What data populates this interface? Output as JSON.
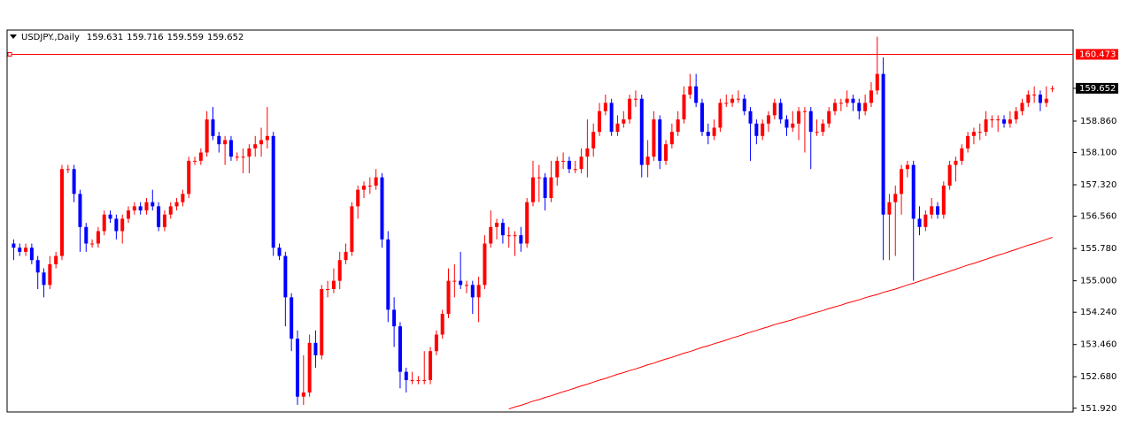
{
  "chart_data": {
    "type": "candlestick",
    "title": "USDJPY.,Daily",
    "up_color": "#ff0000",
    "down_color": "#0000ff",
    "ma_color": "#ff0000",
    "ylim": [
      151.83,
      161.06
    ],
    "yticks": [
      {
        "value": 151.92,
        "label": "151.920"
      },
      {
        "value": 152.68,
        "label": "152.680"
      },
      {
        "value": 153.46,
        "label": "153.460"
      },
      {
        "value": 154.24,
        "label": "154.240"
      },
      {
        "value": 155,
        "label": "155.000"
      },
      {
        "value": 155.78,
        "label": "155.780"
      },
      {
        "value": 156.56,
        "label": "156.560"
      },
      {
        "value": 157.32,
        "label": "157.320"
      },
      {
        "value": 158.1,
        "label": "158.100"
      },
      {
        "value": 158.86,
        "label": "158.860"
      }
    ],
    "level": 160.473,
    "candles": [
      [
        155.9,
        156.0,
        155.5,
        155.8
      ],
      [
        155.8,
        155.9,
        155.6,
        155.7
      ],
      [
        155.7,
        155.9,
        155.6,
        155.8
      ],
      [
        155.8,
        155.9,
        155.4,
        155.5
      ],
      [
        155.5,
        155.6,
        154.8,
        155.2
      ],
      [
        155.2,
        155.3,
        154.6,
        154.9
      ],
      [
        154.9,
        155.6,
        154.8,
        155.4
      ],
      [
        155.4,
        155.7,
        155.3,
        155.6
      ],
      [
        155.6,
        157.8,
        155.5,
        157.7
      ],
      [
        157.7,
        157.8,
        157.6,
        157.7
      ],
      [
        157.7,
        157.8,
        156.9,
        157.1
      ],
      [
        157.1,
        157.2,
        155.7,
        156.3
      ],
      [
        156.3,
        156.4,
        155.7,
        155.9
      ],
      [
        155.9,
        156.0,
        155.8,
        155.9
      ],
      [
        155.9,
        156.3,
        155.8,
        156.2
      ],
      [
        156.2,
        156.7,
        156.1,
        156.6
      ],
      [
        156.6,
        156.7,
        156.4,
        156.5
      ],
      [
        156.5,
        156.6,
        156.0,
        156.2
      ],
      [
        156.2,
        156.6,
        155.9,
        156.5
      ],
      [
        156.5,
        156.8,
        156.4,
        156.7
      ],
      [
        156.7,
        156.9,
        156.6,
        156.8
      ],
      [
        156.8,
        156.9,
        156.6,
        156.7
      ],
      [
        156.7,
        157.0,
        156.6,
        156.9
      ],
      [
        156.9,
        157.2,
        156.7,
        156.8
      ],
      [
        156.8,
        156.9,
        156.2,
        156.3
      ],
      [
        156.3,
        156.7,
        156.2,
        156.6
      ],
      [
        156.6,
        156.9,
        156.5,
        156.8
      ],
      [
        156.8,
        157.0,
        156.7,
        156.9
      ],
      [
        156.9,
        157.2,
        156.8,
        157.1
      ],
      [
        157.1,
        158.0,
        157.0,
        157.9
      ],
      [
        157.9,
        158.0,
        157.8,
        157.9
      ],
      [
        157.9,
        158.2,
        157.8,
        158.1
      ],
      [
        158.1,
        159.1,
        158.0,
        158.9
      ],
      [
        158.9,
        159.2,
        158.4,
        158.5
      ],
      [
        158.5,
        158.6,
        158.1,
        158.3
      ],
      [
        158.3,
        158.5,
        157.8,
        158.4
      ],
      [
        158.4,
        158.5,
        157.9,
        158.0
      ],
      [
        158.0,
        158.1,
        157.9,
        158.0
      ],
      [
        158.0,
        158.2,
        157.6,
        158.0
      ],
      [
        158.0,
        158.3,
        157.6,
        158.2
      ],
      [
        158.2,
        158.5,
        158.0,
        158.3
      ],
      [
        158.3,
        158.7,
        158.0,
        158.4
      ],
      [
        158.4,
        159.2,
        158.2,
        158.5
      ],
      [
        158.5,
        158.6,
        155.6,
        155.8
      ],
      [
        155.8,
        155.9,
        155.5,
        155.6
      ],
      [
        155.6,
        155.7,
        153.9,
        154.6
      ],
      [
        154.6,
        154.7,
        153.3,
        153.6
      ],
      [
        153.6,
        153.8,
        152.0,
        152.2
      ],
      [
        152.2,
        153.2,
        152.0,
        152.3
      ],
      [
        152.3,
        153.7,
        152.2,
        153.5
      ],
      [
        153.5,
        153.8,
        152.9,
        153.2
      ],
      [
        153.2,
        154.9,
        153.1,
        154.8
      ],
      [
        154.8,
        155.0,
        154.6,
        154.8
      ],
      [
        154.8,
        155.3,
        154.7,
        155.0
      ],
      [
        155.0,
        155.7,
        154.8,
        155.5
      ],
      [
        155.5,
        155.9,
        155.4,
        155.7
      ],
      [
        155.7,
        156.9,
        155.6,
        156.8
      ],
      [
        156.8,
        157.3,
        156.5,
        157.2
      ],
      [
        157.2,
        157.4,
        157.0,
        157.3
      ],
      [
        157.3,
        157.5,
        157.1,
        157.3
      ],
      [
        157.3,
        157.7,
        157.2,
        157.5
      ],
      [
        157.5,
        157.6,
        155.8,
        156.0
      ],
      [
        156.0,
        156.2,
        154.0,
        154.3
      ],
      [
        154.3,
        154.6,
        153.4,
        153.9
      ],
      [
        153.9,
        154.0,
        152.4,
        152.8
      ],
      [
        152.8,
        152.9,
        152.3,
        152.6
      ],
      [
        152.6,
        152.8,
        152.5,
        152.6
      ],
      [
        152.6,
        152.7,
        152.5,
        152.6
      ],
      [
        152.6,
        153.3,
        152.5,
        152.6
      ],
      [
        152.6,
        153.4,
        152.5,
        153.3
      ],
      [
        153.3,
        153.8,
        153.2,
        153.7
      ],
      [
        153.7,
        154.3,
        153.6,
        154.2
      ],
      [
        154.2,
        155.3,
        154.1,
        155.0
      ],
      [
        155.0,
        155.4,
        154.6,
        155.0
      ],
      [
        155.0,
        155.7,
        154.8,
        154.9
      ],
      [
        154.9,
        155.0,
        154.7,
        154.9
      ],
      [
        154.9,
        155.0,
        154.2,
        154.6
      ],
      [
        154.6,
        155.1,
        154.0,
        154.9
      ],
      [
        154.9,
        156.1,
        154.8,
        155.9
      ],
      [
        155.9,
        156.7,
        155.8,
        156.3
      ],
      [
        156.3,
        156.5,
        156.0,
        156.4
      ],
      [
        156.4,
        156.5,
        155.9,
        156.1
      ],
      [
        156.1,
        156.3,
        155.8,
        156.1
      ],
      [
        156.1,
        156.2,
        155.6,
        156.1
      ],
      [
        156.1,
        156.3,
        155.7,
        155.9
      ],
      [
        155.9,
        157.0,
        155.8,
        156.9
      ],
      [
        156.9,
        157.9,
        156.8,
        157.5
      ],
      [
        157.5,
        157.8,
        156.9,
        157.5
      ],
      [
        157.5,
        157.6,
        156.7,
        157.0
      ],
      [
        157.0,
        157.9,
        156.9,
        157.5
      ],
      [
        157.5,
        158.0,
        157.3,
        157.9
      ],
      [
        157.9,
        158.1,
        157.7,
        157.9
      ],
      [
        157.9,
        158.0,
        157.6,
        157.7
      ],
      [
        157.7,
        157.9,
        157.6,
        157.7
      ],
      [
        157.7,
        158.2,
        157.6,
        158.0
      ],
      [
        158.0,
        158.9,
        157.5,
        158.2
      ],
      [
        158.2,
        158.8,
        158.0,
        158.6
      ],
      [
        158.6,
        159.3,
        158.5,
        159.1
      ],
      [
        159.1,
        159.5,
        159.0,
        159.3
      ],
      [
        159.3,
        159.4,
        158.5,
        158.6
      ],
      [
        158.6,
        159.0,
        158.5,
        158.8
      ],
      [
        158.8,
        159.1,
        158.7,
        158.9
      ],
      [
        158.9,
        159.5,
        158.8,
        159.4
      ],
      [
        159.4,
        159.6,
        159.2,
        159.4
      ],
      [
        159.4,
        159.5,
        157.5,
        157.8
      ],
      [
        157.8,
        158.4,
        157.5,
        158.0
      ],
      [
        158.0,
        159.1,
        157.9,
        158.9
      ],
      [
        158.9,
        159.0,
        157.7,
        157.9
      ],
      [
        157.9,
        158.4,
        157.8,
        158.3
      ],
      [
        158.3,
        158.8,
        158.2,
        158.6
      ],
      [
        158.6,
        159.1,
        158.5,
        158.9
      ],
      [
        158.9,
        159.7,
        158.8,
        159.5
      ],
      [
        159.5,
        160.0,
        159.4,
        159.7
      ],
      [
        159.7,
        160.0,
        159.2,
        159.3
      ],
      [
        159.3,
        159.4,
        158.5,
        158.6
      ],
      [
        158.6,
        158.8,
        158.3,
        158.5
      ],
      [
        158.5,
        158.9,
        158.4,
        158.7
      ],
      [
        158.7,
        159.4,
        158.6,
        159.3
      ],
      [
        159.3,
        159.5,
        159.2,
        159.3
      ],
      [
        159.3,
        159.5,
        159.2,
        159.4
      ],
      [
        159.4,
        159.6,
        159.3,
        159.4
      ],
      [
        159.4,
        159.5,
        159.0,
        159.1
      ],
      [
        159.1,
        159.2,
        157.9,
        158.8
      ],
      [
        158.8,
        158.9,
        158.3,
        158.5
      ],
      [
        158.5,
        158.9,
        158.4,
        158.8
      ],
      [
        158.8,
        159.1,
        158.6,
        159.0
      ],
      [
        159.0,
        159.4,
        158.9,
        159.3
      ],
      [
        159.3,
        159.4,
        158.8,
        158.9
      ],
      [
        158.9,
        159.0,
        158.5,
        158.7
      ],
      [
        158.7,
        159.1,
        158.6,
        158.8
      ],
      [
        158.8,
        159.2,
        158.4,
        159.1
      ],
      [
        159.1,
        159.2,
        158.1,
        159.1
      ],
      [
        159.1,
        159.2,
        157.7,
        158.6
      ],
      [
        158.6,
        158.9,
        158.5,
        158.6
      ],
      [
        158.6,
        158.9,
        158.5,
        158.8
      ],
      [
        158.8,
        159.2,
        158.7,
        159.1
      ],
      [
        159.1,
        159.4,
        159.0,
        159.3
      ],
      [
        159.3,
        159.4,
        159.1,
        159.3
      ],
      [
        159.3,
        159.6,
        159.2,
        159.4
      ],
      [
        159.4,
        159.5,
        159.1,
        159.3
      ],
      [
        159.3,
        159.4,
        158.9,
        159.1
      ],
      [
        159.1,
        159.5,
        159.0,
        159.3
      ],
      [
        159.3,
        159.8,
        159.2,
        159.6
      ],
      [
        159.6,
        160.9,
        159.5,
        160.0
      ],
      [
        160.0,
        160.4,
        155.5,
        156.6
      ],
      [
        156.6,
        157.1,
        155.5,
        156.9
      ],
      [
        156.9,
        157.3,
        155.6,
        157.1
      ],
      [
        157.1,
        157.8,
        156.6,
        157.7
      ],
      [
        157.7,
        157.9,
        157.5,
        157.8
      ],
      [
        157.8,
        157.9,
        155.0,
        156.5
      ],
      [
        156.5,
        156.8,
        156.1,
        156.3
      ],
      [
        156.3,
        156.7,
        156.2,
        156.6
      ],
      [
        156.6,
        157.0,
        156.5,
        156.8
      ],
      [
        156.8,
        156.9,
        156.5,
        156.6
      ],
      [
        156.6,
        157.4,
        156.5,
        157.3
      ],
      [
        157.3,
        157.9,
        157.2,
        157.8
      ],
      [
        157.8,
        158.0,
        157.4,
        157.9
      ],
      [
        157.9,
        158.3,
        157.8,
        158.2
      ],
      [
        158.2,
        158.6,
        158.1,
        158.5
      ],
      [
        158.5,
        158.7,
        158.3,
        158.6
      ],
      [
        158.6,
        158.8,
        158.4,
        158.6
      ],
      [
        158.6,
        159.1,
        158.5,
        158.9
      ],
      [
        158.9,
        159.0,
        158.7,
        158.9
      ],
      [
        158.9,
        159.0,
        158.6,
        158.9
      ],
      [
        158.9,
        159.0,
        158.7,
        158.8
      ],
      [
        158.8,
        159.1,
        158.7,
        158.9
      ],
      [
        158.9,
        159.2,
        158.8,
        159.1
      ],
      [
        159.1,
        159.4,
        159.0,
        159.3
      ],
      [
        159.3,
        159.6,
        159.2,
        159.5
      ],
      [
        159.5,
        159.7,
        159.3,
        159.5
      ],
      [
        159.5,
        159.6,
        159.1,
        159.3
      ],
      [
        159.3,
        159.7,
        159.2,
        159.4
      ],
      [
        159.631,
        159.716,
        159.559,
        159.652
      ]
    ],
    "ma": [
      null,
      null,
      null,
      null,
      null,
      null,
      null,
      null,
      null,
      null,
      null,
      null,
      null,
      null,
      null,
      null,
      null,
      null,
      null,
      null,
      null,
      null,
      null,
      null,
      null,
      null,
      null,
      null,
      null,
      null,
      null,
      null,
      null,
      null,
      null,
      null,
      null,
      null,
      null,
      null,
      null,
      null,
      null,
      null,
      null,
      null,
      null,
      null,
      null,
      null,
      null,
      null,
      null,
      null,
      null,
      null,
      null,
      null,
      null,
      null,
      null,
      null,
      null,
      null,
      null,
      null,
      null,
      null,
      null,
      null,
      null,
      null,
      null,
      null,
      null,
      null,
      null,
      null,
      null,
      null,
      null,
      null,
      151.9,
      151.95,
      151.99,
      152.04,
      152.09,
      152.13,
      152.18,
      152.22,
      152.27,
      152.32,
      152.36,
      152.41,
      152.46,
      152.5,
      152.55,
      152.6,
      152.64,
      152.69,
      152.74,
      152.78,
      152.83,
      152.87,
      152.92,
      152.97,
      153.01,
      153.06,
      153.11,
      153.15,
      153.2,
      153.25,
      153.29,
      153.34,
      153.39,
      153.43,
      153.48,
      153.52,
      153.57,
      153.62,
      153.66,
      153.71,
      153.76,
      153.8,
      153.85,
      153.89,
      153.94,
      153.98,
      154.02,
      154.06,
      154.11,
      154.15,
      154.2,
      154.24,
      154.28,
      154.33,
      154.37,
      154.41,
      154.46,
      154.5,
      154.54,
      154.59,
      154.63,
      154.67,
      154.72,
      154.76,
      154.8,
      154.85,
      154.9,
      154.94,
      154.99,
      155.04,
      155.09,
      155.14,
      155.18,
      155.23,
      155.28,
      155.33,
      155.38,
      155.42,
      155.47,
      155.52,
      155.57,
      155.62,
      155.66,
      155.71,
      155.76,
      155.81,
      155.86,
      155.9,
      155.95,
      156.0,
      156.05
    ]
  }
}
